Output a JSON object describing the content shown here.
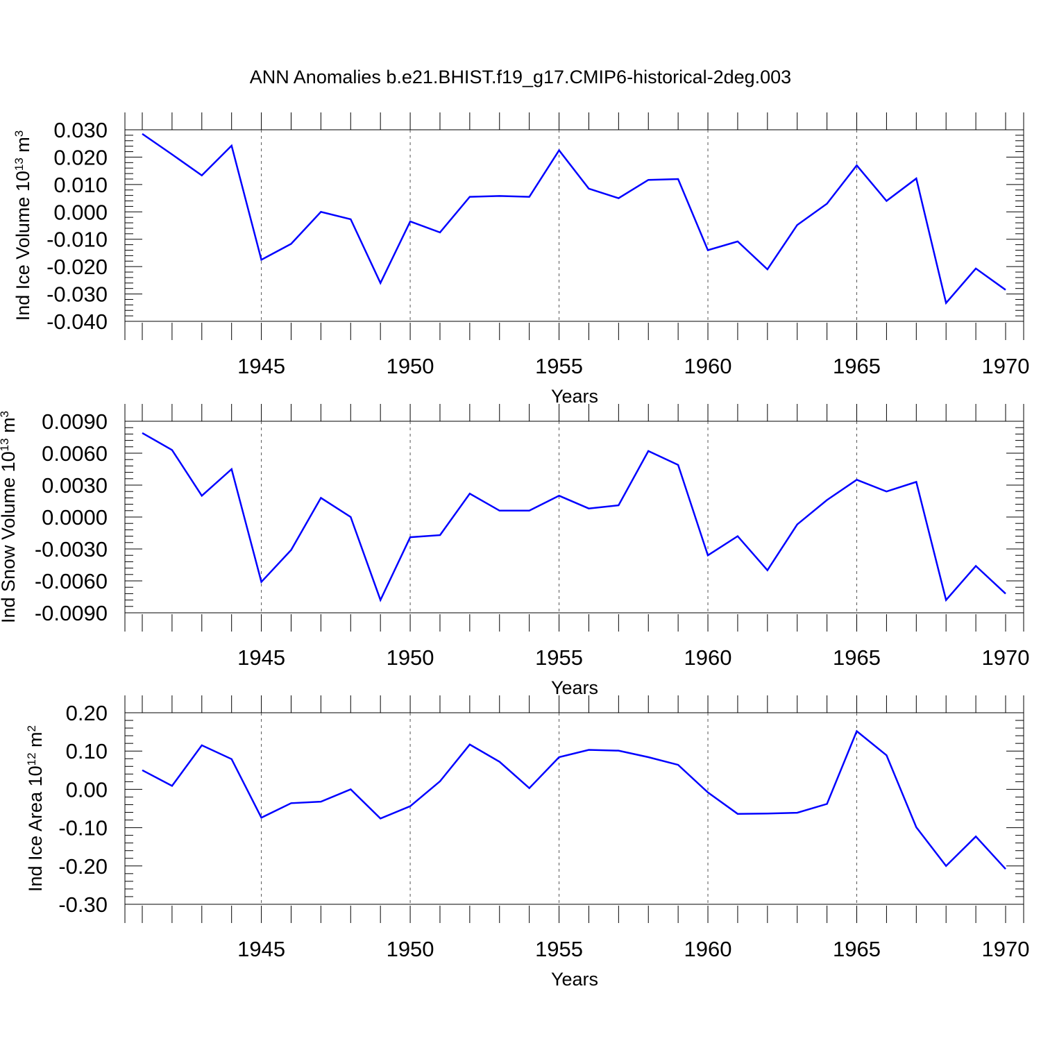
{
  "title": "ANN Anomalies b.e21.BHIST.f19_g17.CMIP6-historical-2deg.003",
  "colors": {
    "line": "#0000ff",
    "axis": "#000000",
    "grid": "#555555"
  },
  "chart_data": [
    {
      "type": "line",
      "ylabel": "Ind Ice Volume 10",
      "ylabel_exp": "13",
      "ylabel_unit": " m",
      "ylabel_unit_exp": "3",
      "xlabel": "Years",
      "xlim": [
        1941,
        1970
      ],
      "ylim": [
        -0.04,
        0.03
      ],
      "ytick_labels": [
        "0.030",
        "0.020",
        "0.010",
        "0.000",
        "-0.010",
        "-0.020",
        "-0.030",
        "-0.040"
      ],
      "ytick_values": [
        0.03,
        0.02,
        0.01,
        0.0,
        -0.01,
        -0.02,
        -0.03,
        -0.04
      ],
      "xtick_labels": [
        "1945",
        "1950",
        "1955",
        "1960",
        "1965",
        "1970"
      ],
      "xtick_values": [
        1945,
        1950,
        1955,
        1960,
        1965,
        1970
      ],
      "vertical_gridlines": [
        1945,
        1950,
        1955,
        1960,
        1965
      ],
      "x": [
        1941,
        1942,
        1943,
        1944,
        1945,
        1946,
        1947,
        1948,
        1949,
        1950,
        1951,
        1952,
        1953,
        1954,
        1955,
        1956,
        1957,
        1958,
        1959,
        1960,
        1961,
        1962,
        1963,
        1964,
        1965,
        1966,
        1967,
        1968,
        1969,
        1970
      ],
      "y": [
        0.0285,
        0.021,
        0.0133,
        0.0242,
        -0.0175,
        -0.0117,
        0.0,
        -0.0027,
        -0.026,
        -0.0035,
        -0.0075,
        0.0055,
        0.0058,
        0.0055,
        0.0225,
        0.0085,
        0.005,
        0.0117,
        0.012,
        -0.014,
        -0.0108,
        -0.021,
        -0.0048,
        0.003,
        0.017,
        0.004,
        0.0122,
        -0.0333,
        -0.0207,
        -0.0285
      ]
    },
    {
      "type": "line",
      "ylabel": "Ind Snow Volume 10",
      "ylabel_exp": "13",
      "ylabel_unit": " m",
      "ylabel_unit_exp": "3",
      "xlabel": "Years",
      "xlim": [
        1941,
        1970
      ],
      "ylim": [
        -0.009,
        0.009
      ],
      "ytick_labels": [
        "0.0090",
        "0.0060",
        "0.0030",
        "0.0000",
        "-0.0030",
        "-0.0060",
        "-0.0090"
      ],
      "ytick_values": [
        0.009,
        0.006,
        0.003,
        0.0,
        -0.003,
        -0.006,
        -0.009
      ],
      "xtick_labels": [
        "1945",
        "1950",
        "1955",
        "1960",
        "1965",
        "1970"
      ],
      "xtick_values": [
        1945,
        1950,
        1955,
        1960,
        1965,
        1970
      ],
      "vertical_gridlines": [
        1945,
        1950,
        1955,
        1960,
        1965
      ],
      "x": [
        1941,
        1942,
        1943,
        1944,
        1945,
        1946,
        1947,
        1948,
        1949,
        1950,
        1951,
        1952,
        1953,
        1954,
        1955,
        1956,
        1957,
        1958,
        1959,
        1960,
        1961,
        1962,
        1963,
        1964,
        1965,
        1966,
        1967,
        1968,
        1969,
        1970
      ],
      "y": [
        0.0079,
        0.0063,
        0.002,
        0.0045,
        -0.0061,
        -0.0031,
        0.0018,
        0.0,
        -0.0078,
        -0.0019,
        -0.0017,
        0.0022,
        0.0006,
        0.0006,
        0.002,
        0.0008,
        0.0011,
        0.0062,
        0.0049,
        -0.0036,
        -0.0018,
        -0.005,
        -0.0007,
        0.0016,
        0.0035,
        0.0024,
        0.0033,
        -0.0078,
        -0.0046,
        -0.0072
      ]
    },
    {
      "type": "line",
      "ylabel": "Ind Ice Area 10",
      "ylabel_exp": "12",
      "ylabel_unit": " m",
      "ylabel_unit_exp": "2",
      "xlabel": "Years",
      "xlim": [
        1941,
        1970
      ],
      "ylim": [
        -0.3,
        0.2
      ],
      "ytick_labels": [
        "0.20",
        "0.10",
        "0.00",
        "-0.10",
        "-0.20",
        "-0.30"
      ],
      "ytick_values": [
        0.2,
        0.1,
        0.0,
        -0.1,
        -0.2,
        -0.3
      ],
      "xtick_labels": [
        "1945",
        "1950",
        "1955",
        "1960",
        "1965",
        "1970"
      ],
      "xtick_values": [
        1945,
        1950,
        1955,
        1960,
        1965,
        1970
      ],
      "vertical_gridlines": [
        1945,
        1950,
        1955,
        1960,
        1965
      ],
      "x": [
        1941,
        1942,
        1943,
        1944,
        1945,
        1946,
        1947,
        1948,
        1949,
        1950,
        1951,
        1952,
        1953,
        1954,
        1955,
        1956,
        1957,
        1958,
        1959,
        1960,
        1961,
        1962,
        1963,
        1964,
        1965,
        1966,
        1967,
        1968,
        1969,
        1970
      ],
      "y": [
        0.05,
        0.009,
        0.115,
        0.079,
        -0.074,
        -0.036,
        -0.032,
        0.0,
        -0.076,
        -0.044,
        0.021,
        0.117,
        0.072,
        0.003,
        0.084,
        0.103,
        0.101,
        0.084,
        0.064,
        -0.008,
        -0.064,
        -0.063,
        -0.061,
        -0.038,
        0.152,
        0.089,
        -0.099,
        -0.2,
        -0.123,
        -0.208
      ]
    }
  ]
}
